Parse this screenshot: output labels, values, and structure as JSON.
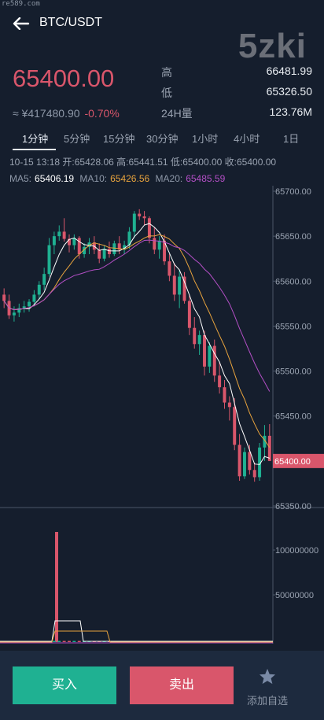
{
  "watermark": "re589.com",
  "header": {
    "title": "BTC/USDT",
    "brand": "5zki"
  },
  "ticker": {
    "price": "65400.00",
    "cny": "≈ ¥417480.90",
    "change": "-0.70%",
    "high_label": "高",
    "high": "66481.99",
    "low_label": "低",
    "low": "65326.50",
    "vol_label": "24H量",
    "vol": "123.76M"
  },
  "tabs": [
    "1分钟",
    "5分钟",
    "15分钟",
    "30分钟",
    "1小时",
    "4小时",
    "1日"
  ],
  "ohlc": {
    "time": "10-15 13:18",
    "open_label": "开:",
    "open": "65428.06",
    "high_label": "高:",
    "high": "65441.51",
    "low_label": "低:",
    "low": "65400.00",
    "close_label": "收:",
    "close": "65400.00"
  },
  "ma": {
    "ma5_label": "MA5:",
    "ma5": "65406.19",
    "ma10_label": "MA10:",
    "ma10": "65426.56",
    "ma20_label": "MA20:",
    "ma20": "65485.59"
  },
  "colors": {
    "up": "#1fb192",
    "down": "#d9566b",
    "ma5": "#ffffff",
    "ma10": "#e8a33d",
    "ma20": "#b34fc5",
    "background": "#151e2d",
    "grid": "#2a3446"
  },
  "chart_data": {
    "type": "candlestick",
    "y_ticks": [
      "65700.00",
      "65650.00",
      "65600.00",
      "65550.00",
      "65500.00",
      "65450.00",
      "65400.00",
      "65350.00"
    ],
    "ylim": [
      65350,
      65700
    ],
    "current_price_label": "65400.00",
    "volume_ticks": [
      "100000000",
      "50000000"
    ],
    "candles": [
      {
        "o": 65585,
        "h": 65592,
        "l": 65570,
        "c": 65578
      },
      {
        "o": 65578,
        "h": 65585,
        "l": 65558,
        "c": 65562
      },
      {
        "o": 65562,
        "h": 65572,
        "l": 65555,
        "c": 65565
      },
      {
        "o": 65565,
        "h": 65575,
        "l": 65560,
        "c": 65570
      },
      {
        "o": 65570,
        "h": 65578,
        "l": 65565,
        "c": 65572
      },
      {
        "o": 65572,
        "h": 65580,
        "l": 65566,
        "c": 65577
      },
      {
        "o": 65577,
        "h": 65590,
        "l": 65572,
        "c": 65585
      },
      {
        "o": 65585,
        "h": 65600,
        "l": 65580,
        "c": 65596
      },
      {
        "o": 65596,
        "h": 65615,
        "l": 65590,
        "c": 65608
      },
      {
        "o": 65608,
        "h": 65648,
        "l": 65605,
        "c": 65640
      },
      {
        "o": 65640,
        "h": 65655,
        "l": 65630,
        "c": 65650
      },
      {
        "o": 65650,
        "h": 65662,
        "l": 65645,
        "c": 65655
      },
      {
        "o": 65655,
        "h": 65670,
        "l": 65644,
        "c": 65647
      },
      {
        "o": 65647,
        "h": 65652,
        "l": 65632,
        "c": 65640
      },
      {
        "o": 65640,
        "h": 65652,
        "l": 65635,
        "c": 65648
      },
      {
        "o": 65648,
        "h": 65650,
        "l": 65625,
        "c": 65630
      },
      {
        "o": 65630,
        "h": 65642,
        "l": 65626,
        "c": 65638
      },
      {
        "o": 65638,
        "h": 65648,
        "l": 65630,
        "c": 65643
      },
      {
        "o": 65643,
        "h": 65650,
        "l": 65630,
        "c": 65635
      },
      {
        "o": 65635,
        "h": 65642,
        "l": 65620,
        "c": 65625
      },
      {
        "o": 65625,
        "h": 65640,
        "l": 65622,
        "c": 65636
      },
      {
        "o": 65636,
        "h": 65644,
        "l": 65626,
        "c": 65630
      },
      {
        "o": 65630,
        "h": 65645,
        "l": 65628,
        "c": 65642
      },
      {
        "o": 65642,
        "h": 65650,
        "l": 65630,
        "c": 65635
      },
      {
        "o": 65635,
        "h": 65645,
        "l": 65630,
        "c": 65640
      },
      {
        "o": 65640,
        "h": 65660,
        "l": 65636,
        "c": 65655
      },
      {
        "o": 65655,
        "h": 65678,
        "l": 65648,
        "c": 65675
      },
      {
        "o": 65675,
        "h": 65680,
        "l": 65668,
        "c": 65672
      },
      {
        "o": 65672,
        "h": 65678,
        "l": 65662,
        "c": 65670
      },
      {
        "o": 65670,
        "h": 65672,
        "l": 65642,
        "c": 65648
      },
      {
        "o": 65648,
        "h": 65660,
        "l": 65630,
        "c": 65635
      },
      {
        "o": 65635,
        "h": 65650,
        "l": 65625,
        "c": 65645
      },
      {
        "o": 65645,
        "h": 65652,
        "l": 65618,
        "c": 65622
      },
      {
        "o": 65622,
        "h": 65630,
        "l": 65600,
        "c": 65606
      },
      {
        "o": 65606,
        "h": 65620,
        "l": 65578,
        "c": 65585
      },
      {
        "o": 65585,
        "h": 65612,
        "l": 65570,
        "c": 65605
      },
      {
        "o": 65605,
        "h": 65610,
        "l": 65575,
        "c": 65578
      },
      {
        "o": 65578,
        "h": 65585,
        "l": 65540,
        "c": 65548
      },
      {
        "o": 65548,
        "h": 65560,
        "l": 65525,
        "c": 65530
      },
      {
        "o": 65530,
        "h": 65545,
        "l": 65518,
        "c": 65540
      },
      {
        "o": 65540,
        "h": 65545,
        "l": 65495,
        "c": 65505
      },
      {
        "o": 65505,
        "h": 65532,
        "l": 65498,
        "c": 65528
      },
      {
        "o": 65528,
        "h": 65535,
        "l": 65488,
        "c": 65495
      },
      {
        "o": 65495,
        "h": 65510,
        "l": 65475,
        "c": 65482
      },
      {
        "o": 65482,
        "h": 65490,
        "l": 65458,
        "c": 65465
      },
      {
        "o": 65465,
        "h": 65472,
        "l": 65445,
        "c": 65460
      },
      {
        "o": 65460,
        "h": 65470,
        "l": 65412,
        "c": 65418
      },
      {
        "o": 65418,
        "h": 65430,
        "l": 65378,
        "c": 65383
      },
      {
        "o": 65383,
        "h": 65415,
        "l": 65380,
        "c": 65410
      },
      {
        "o": 65410,
        "h": 65418,
        "l": 65385,
        "c": 65390
      },
      {
        "o": 65390,
        "h": 65398,
        "l": 65377,
        "c": 65382
      },
      {
        "o": 65382,
        "h": 65420,
        "l": 65378,
        "c": 65415
      },
      {
        "o": 65415,
        "h": 65440,
        "l": 65400,
        "c": 65428
      },
      {
        "o": 65428,
        "h": 65441,
        "l": 65400,
        "c": 65400
      }
    ]
  },
  "actions": {
    "buy": "买入",
    "sell": "卖出",
    "favorite": "添加自选"
  }
}
